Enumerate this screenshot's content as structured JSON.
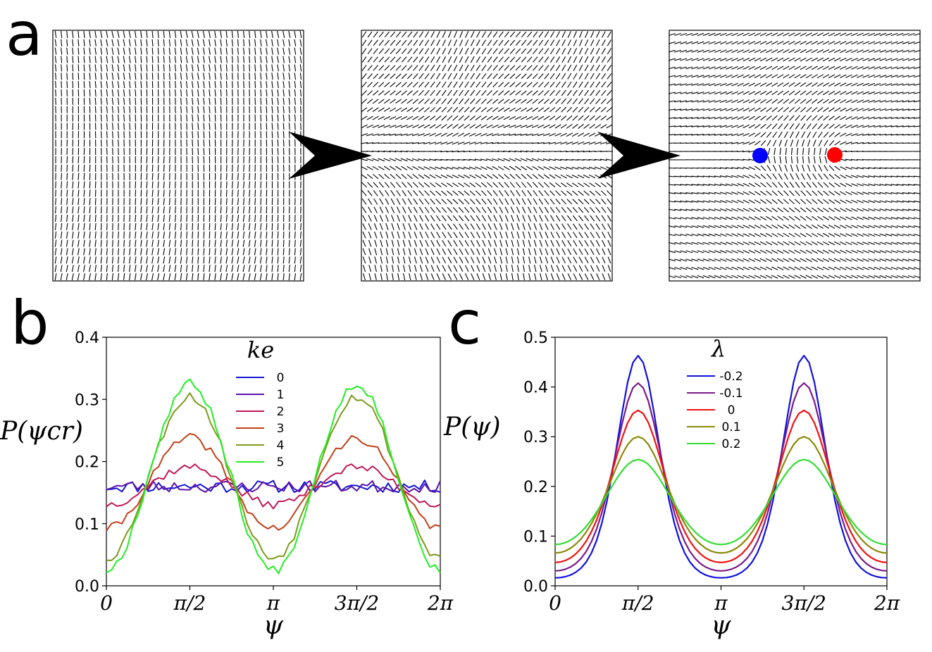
{
  "panel_labels": {
    "a": "a",
    "b": "b",
    "c": "c"
  },
  "panel_a": {
    "markers": [
      {
        "name": "defect-minus",
        "color": "#0000ff"
      },
      {
        "name": "defect-plus",
        "color": "#ff0000"
      }
    ]
  },
  "chart_data": [
    {
      "panel": "b",
      "type": "line",
      "title": "",
      "xlabel": "ψ",
      "ylabel": "P(ψ_cr)",
      "ylabel_display": "P(ψcr)",
      "xlim": [
        0,
        6.2832
      ],
      "ylim": [
        0,
        0.4
      ],
      "yticks": [
        0.0,
        0.1,
        0.2,
        0.3,
        0.4
      ],
      "yticklabels": [
        "0.0",
        "0.1",
        "0.2",
        "0.3",
        "0.4"
      ],
      "xticks": [
        0,
        1.5708,
        3.1416,
        4.7124,
        6.2832
      ],
      "xticklabels": [
        "0",
        "π/2",
        "π",
        "3π/2",
        "2π"
      ],
      "grid": false,
      "legend": {
        "title": "k_e",
        "title_display": "ke",
        "placement": "top-center"
      },
      "samples": 64,
      "series": [
        {
          "name": "0",
          "color": "#1515d2",
          "mean": 0.16,
          "amp": 0.0,
          "noise": 0.01,
          "seed": 11
        },
        {
          "name": "1",
          "color": "#5a12a8",
          "mean": 0.16,
          "amp": 0.0,
          "noise": 0.01,
          "seed": 23
        },
        {
          "name": "2",
          "color": "#c01858",
          "mean": 0.161,
          "amp": 0.03,
          "noise": 0.007,
          "seed": 37
        },
        {
          "name": "3",
          "color": "#c0401a",
          "mean": 0.165,
          "amp": 0.073,
          "noise": 0.007,
          "seed": 41
        },
        {
          "name": "4",
          "color": "#7a9a1a",
          "mean": 0.175,
          "amp": 0.13,
          "noise": 0.008,
          "seed": 53
        },
        {
          "name": "5",
          "color": "#22ee22",
          "mean": 0.175,
          "amp": 0.15,
          "noise": 0.008,
          "seed": 67
        }
      ]
    },
    {
      "panel": "c",
      "type": "line",
      "title": "",
      "xlabel": "ψ",
      "ylabel": "P(ψ)",
      "xlim": [
        0,
        6.2832
      ],
      "ylim": [
        0,
        0.5
      ],
      "yticks": [
        0.0,
        0.1,
        0.2,
        0.3,
        0.4,
        0.5
      ],
      "yticklabels": [
        "0.0",
        "0.1",
        "0.2",
        "0.3",
        "0.4",
        "0.5"
      ],
      "xticks": [
        0,
        1.5708,
        3.1416,
        4.7124,
        6.2832
      ],
      "xticklabels": [
        "0",
        "π/2",
        "π",
        "3π/2",
        "2π"
      ],
      "grid": false,
      "legend": {
        "title": "λ",
        "placement": "top-center"
      },
      "samples": 64,
      "series": [
        {
          "name": "-0.2",
          "color": "#0f0fdd",
          "kappa": 1.6,
          "peak": 0.463,
          "trough": 0.016
        },
        {
          "name": "-0.1",
          "color": "#7a1a8a",
          "kappa": 1.25,
          "peak": 0.408,
          "trough": 0.03
        },
        {
          "name": "0",
          "color": "#ee1111",
          "kappa": 0.95,
          "peak": 0.353,
          "trough": 0.047
        },
        {
          "name": "0.1",
          "color": "#8a8a0a",
          "kappa": 0.68,
          "peak": 0.3,
          "trough": 0.066
        },
        {
          "name": "0.2",
          "color": "#33dd33",
          "kappa": 0.48,
          "peak": 0.254,
          "trough": 0.083
        }
      ]
    }
  ]
}
